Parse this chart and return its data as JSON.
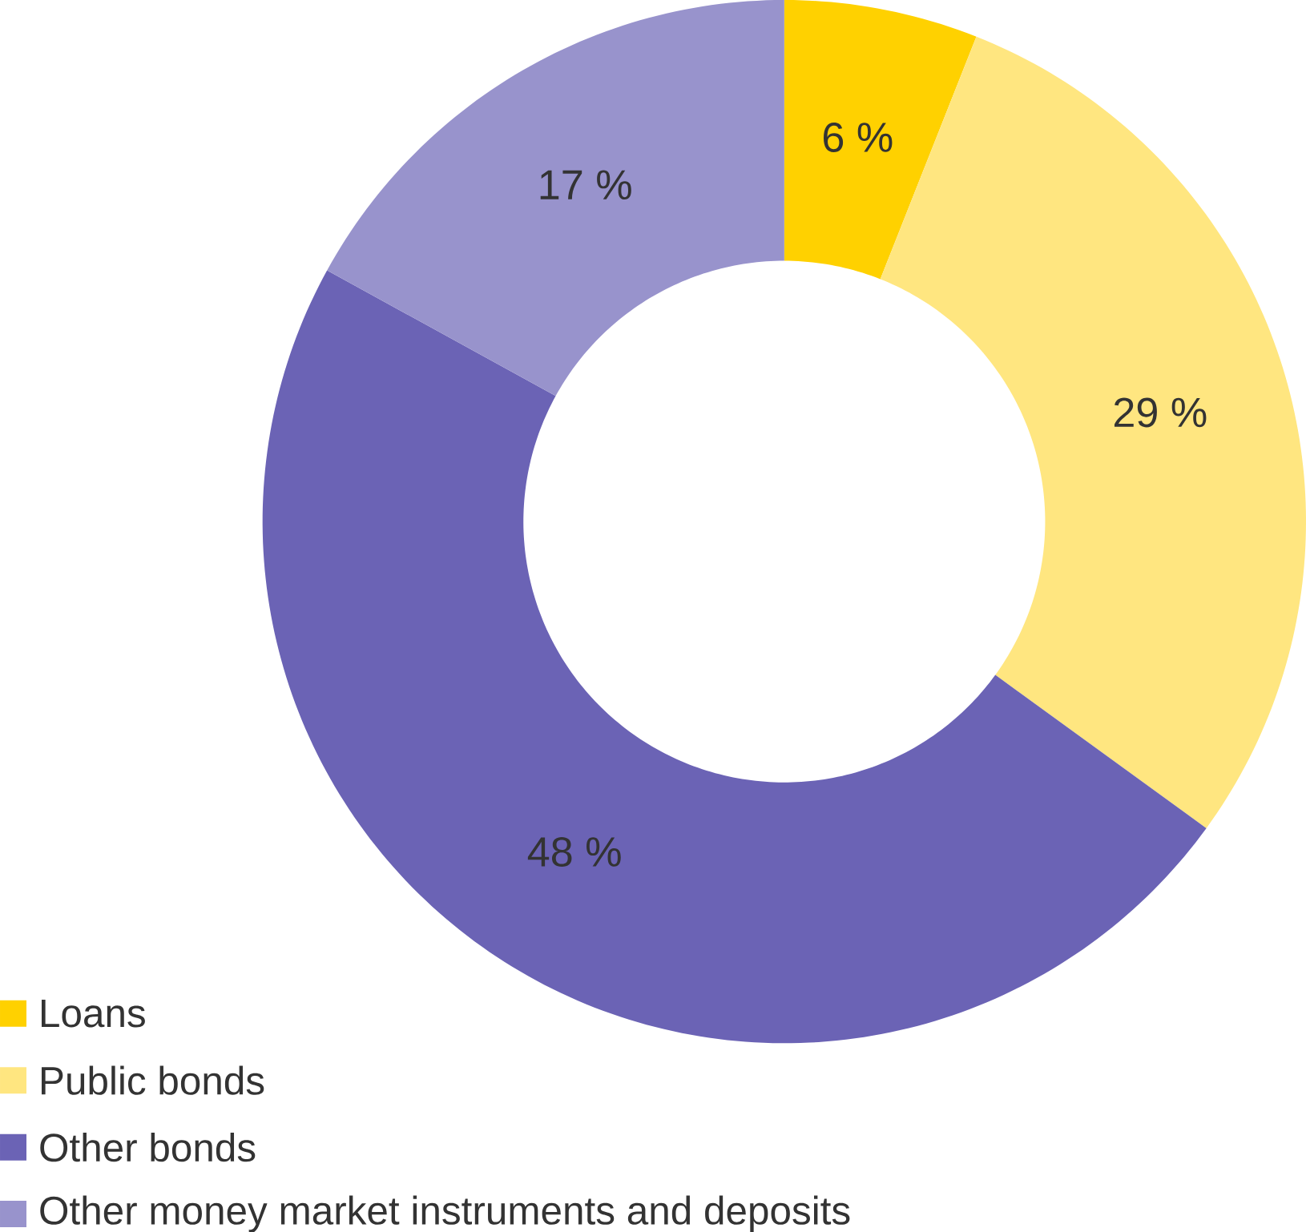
{
  "chart_data": {
    "type": "donut",
    "categories": [
      "Loans",
      "Public bonds",
      "Other bonds",
      "Other money market instruments and deposits"
    ],
    "values": [
      6,
      29,
      48,
      17
    ],
    "colors": [
      "#ffd100",
      "#ffe680",
      "#6b63b5",
      "#9893cc"
    ],
    "value_labels": [
      "6 %",
      "29 %",
      "48 %",
      "17 %"
    ],
    "legend": "bottom left"
  }
}
